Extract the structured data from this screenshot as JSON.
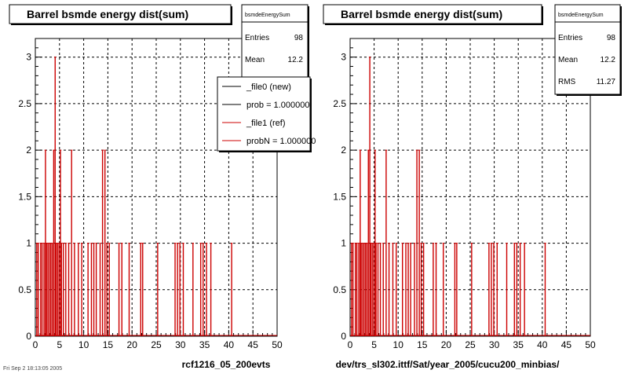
{
  "stamp": "Fri Sep 2 18:13:05 2005",
  "legend": {
    "entries": [
      {
        "label": "_file0 (new)",
        "color": "#000000"
      },
      {
        "label": "prob = 1.000000",
        "color": "#000000"
      },
      {
        "label": "_file1 (ref)",
        "color": "#cc0000"
      },
      {
        "label": "probN = 1.000000",
        "color": "#cc0000"
      }
    ]
  },
  "chart_data": [
    {
      "type": "bar",
      "title": "Barrel bsmde energy dist(sum)",
      "xlabel": "rcf1216_05_200evts",
      "ylabel": "",
      "xlim": [
        0,
        50
      ],
      "ylim": [
        0,
        3.2
      ],
      "x_ticks": [
        "0",
        "5",
        "10",
        "15",
        "20",
        "25",
        "30",
        "35",
        "40",
        "45",
        "50"
      ],
      "y_ticks": [
        "0",
        "0.5",
        "1",
        "1.5",
        "2",
        "2.5",
        "3"
      ],
      "grid": true,
      "legend": "top-right",
      "stats": {
        "name": "bsmdeEnergySum",
        "rows": [
          {
            "label": "Entries",
            "value": "98"
          },
          {
            "label": "Mean",
            "value": "12.2"
          }
        ]
      },
      "series": [
        {
          "name": "_file1 (ref)",
          "color": "#cc0000",
          "x": [
            0.3,
            0.6,
            1.1,
            1.4,
            1.8,
            2.1,
            2.3,
            2.6,
            2.9,
            3.2,
            3.5,
            3.8,
            4.1,
            4.3,
            4.6,
            4.9,
            5.2,
            5.4,
            5.8,
            6.3,
            6.9,
            7.5,
            8.1,
            8.9,
            9.6,
            10.9,
            11.6,
            12.1,
            12.6,
            13.4,
            13.9,
            14.4,
            14.8,
            15.3,
            17.3,
            17.9,
            19.4,
            21.8,
            22.2,
            25.3,
            28.9,
            29.4,
            29.9,
            30.6,
            32.6,
            34.2,
            34.7,
            35.4,
            36.3,
            40.6
          ],
          "y": [
            1,
            1,
            1,
            1,
            1,
            2,
            1,
            1,
            1,
            1,
            1,
            2,
            3,
            1,
            1,
            1,
            2,
            1,
            1,
            1,
            1,
            2,
            1,
            1,
            1,
            1,
            1,
            1,
            1,
            1,
            2,
            2,
            1,
            1,
            1,
            1,
            1,
            1,
            1,
            1,
            1,
            1,
            1,
            1,
            1,
            1,
            1,
            1,
            1,
            1
          ]
        }
      ]
    },
    {
      "type": "bar",
      "title": "Barrel bsmde energy dist(sum)",
      "xlabel": "dev/trs_sl302.ittf/Sat/year_2005/cucu200_minbias/",
      "ylabel": "",
      "xlim": [
        0,
        50
      ],
      "ylim": [
        0,
        3.2
      ],
      "x_ticks": [
        "0",
        "5",
        "10",
        "15",
        "20",
        "25",
        "30",
        "35",
        "40",
        "45",
        "50"
      ],
      "y_ticks": [
        "0",
        "0.5",
        "1",
        "1.5",
        "2",
        "2.5",
        "3"
      ],
      "grid": true,
      "stats": {
        "name": "bsmdeEnergySum",
        "rows": [
          {
            "label": "Entries",
            "value": "98"
          },
          {
            "label": "Mean",
            "value": "12.2"
          },
          {
            "label": "RMS",
            "value": "11.27"
          }
        ]
      },
      "series": [
        {
          "name": "",
          "color": "#cc0000",
          "x": [
            0.3,
            0.6,
            1.1,
            1.4,
            1.8,
            2.1,
            2.3,
            2.6,
            2.9,
            3.2,
            3.5,
            3.8,
            4.1,
            4.3,
            4.6,
            4.9,
            5.2,
            5.4,
            5.8,
            6.3,
            6.9,
            7.5,
            8.1,
            8.9,
            9.6,
            10.9,
            11.6,
            12.1,
            12.6,
            13.4,
            13.9,
            14.4,
            14.8,
            15.3,
            17.3,
            17.9,
            19.4,
            21.8,
            22.2,
            25.3,
            28.9,
            29.4,
            29.9,
            30.6,
            32.6,
            34.2,
            34.7,
            35.4,
            36.3,
            40.6
          ],
          "y": [
            1,
            1,
            1,
            1,
            1,
            2,
            1,
            1,
            1,
            1,
            1,
            2,
            3,
            1,
            1,
            1,
            2,
            1,
            1,
            1,
            1,
            2,
            1,
            1,
            1,
            1,
            1,
            1,
            1,
            1,
            2,
            2,
            1,
            1,
            1,
            1,
            1,
            1,
            1,
            1,
            1,
            1,
            1,
            1,
            1,
            1,
            1,
            1,
            1,
            1
          ]
        }
      ]
    }
  ]
}
